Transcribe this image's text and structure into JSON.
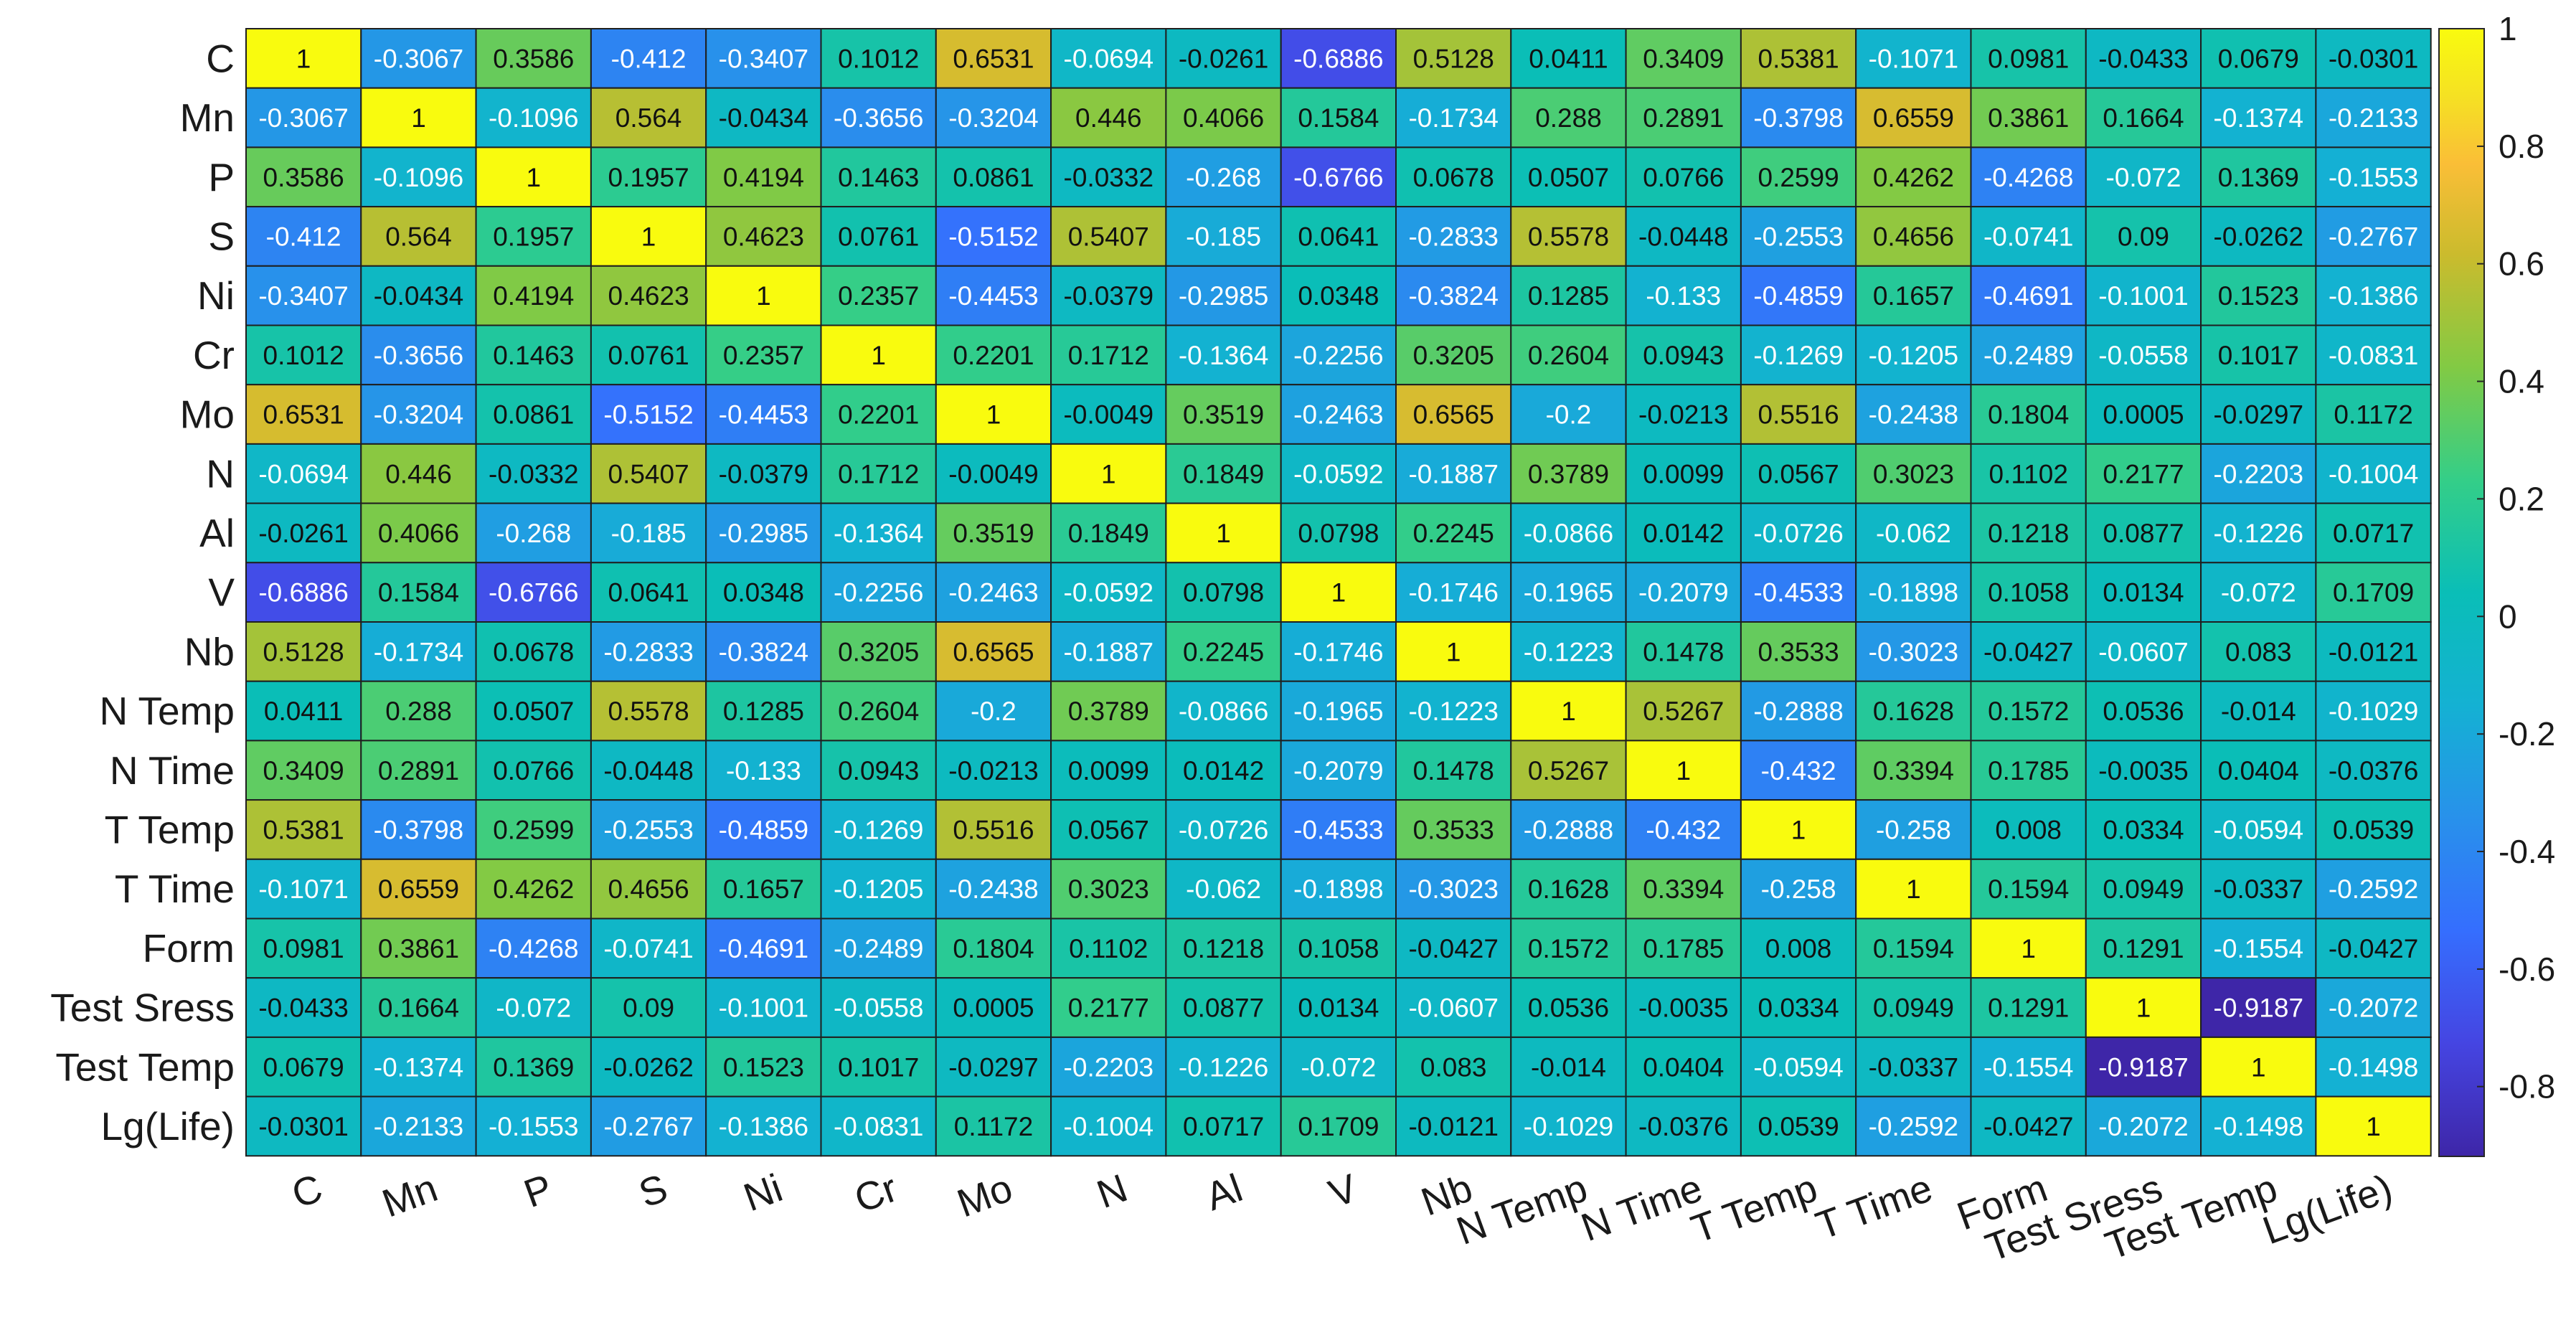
{
  "chart_data": {
    "type": "heatmap",
    "title": "",
    "xlabel": "",
    "ylabel": "",
    "colormap": "parula",
    "clim": [
      -0.9187,
      1
    ],
    "colorbar_ticks": [
      "1",
      "0.8",
      "0.6",
      "0.4",
      "0.2",
      "0",
      "-0.2",
      "-0.4",
      "-0.6",
      "-0.8"
    ],
    "row_labels": [
      "C",
      "Mn",
      "P",
      "S",
      "Ni",
      "Cr",
      "Mo",
      "N",
      "Al",
      "V",
      "Nb",
      "N Temp",
      "N Time",
      "T Temp",
      "T Time",
      "Form",
      "Test Sress",
      "Test Temp",
      "Lg(Life)"
    ],
    "col_labels": [
      "C",
      "Mn",
      "P",
      "S",
      "Ni",
      "Cr",
      "Mo",
      "N",
      "Al",
      "V",
      "Nb",
      "N Temp",
      "N Time",
      "T Temp",
      "T Time",
      "Form",
      "Test Sress",
      "Test Temp",
      "Lg(Life)"
    ],
    "values": [
      [
        "1",
        "-0.3067",
        "0.3586",
        "-0.412",
        "-0.3407",
        "0.1012",
        "0.6531",
        "-0.0694",
        "-0.0261",
        "-0.6886",
        "0.5128",
        "0.0411",
        "0.3409",
        "0.5381",
        "-0.1071",
        "0.0981",
        "-0.0433",
        "0.0679",
        "-0.0301"
      ],
      [
        "-0.3067",
        "1",
        "-0.1096",
        "0.564",
        "-0.0434",
        "-0.3656",
        "-0.3204",
        "0.446",
        "0.4066",
        "0.1584",
        "-0.1734",
        "0.288",
        "0.2891",
        "-0.3798",
        "0.6559",
        "0.3861",
        "0.1664",
        "-0.1374",
        "-0.2133"
      ],
      [
        "0.3586",
        "-0.1096",
        "1",
        "0.1957",
        "0.4194",
        "0.1463",
        "0.0861",
        "-0.0332",
        "-0.268",
        "-0.6766",
        "0.0678",
        "0.0507",
        "0.0766",
        "0.2599",
        "0.4262",
        "-0.4268",
        "-0.072",
        "0.1369",
        "-0.1553"
      ],
      [
        "-0.412",
        "0.564",
        "0.1957",
        "1",
        "0.4623",
        "0.0761",
        "-0.5152",
        "0.5407",
        "-0.185",
        "0.0641",
        "-0.2833",
        "0.5578",
        "-0.0448",
        "-0.2553",
        "0.4656",
        "-0.0741",
        "0.09",
        "-0.0262",
        "-0.2767"
      ],
      [
        "-0.3407",
        "-0.0434",
        "0.4194",
        "0.4623",
        "1",
        "0.2357",
        "-0.4453",
        "-0.0379",
        "-0.2985",
        "0.0348",
        "-0.3824",
        "0.1285",
        "-0.133",
        "-0.4859",
        "0.1657",
        "-0.4691",
        "-0.1001",
        "0.1523",
        "-0.1386"
      ],
      [
        "0.1012",
        "-0.3656",
        "0.1463",
        "0.0761",
        "0.2357",
        "1",
        "0.2201",
        "0.1712",
        "-0.1364",
        "-0.2256",
        "0.3205",
        "0.2604",
        "0.0943",
        "-0.1269",
        "-0.1205",
        "-0.2489",
        "-0.0558",
        "0.1017",
        "-0.0831"
      ],
      [
        "0.6531",
        "-0.3204",
        "0.0861",
        "-0.5152",
        "-0.4453",
        "0.2201",
        "1",
        "-0.0049",
        "0.3519",
        "-0.2463",
        "0.6565",
        "-0.2",
        "-0.0213",
        "0.5516",
        "-0.2438",
        "0.1804",
        "0.0005",
        "-0.0297",
        "0.1172"
      ],
      [
        "-0.0694",
        "0.446",
        "-0.0332",
        "0.5407",
        "-0.0379",
        "0.1712",
        "-0.0049",
        "1",
        "0.1849",
        "-0.0592",
        "-0.1887",
        "0.3789",
        "0.0099",
        "0.0567",
        "0.3023",
        "0.1102",
        "0.2177",
        "-0.2203",
        "-0.1004"
      ],
      [
        "-0.0261",
        "0.4066",
        "-0.268",
        "-0.185",
        "-0.2985",
        "-0.1364",
        "0.3519",
        "0.1849",
        "1",
        "0.0798",
        "0.2245",
        "-0.0866",
        "0.0142",
        "-0.0726",
        "-0.062",
        "0.1218",
        "0.0877",
        "-0.1226",
        "0.0717"
      ],
      [
        "-0.6886",
        "0.1584",
        "-0.6766",
        "0.0641",
        "0.0348",
        "-0.2256",
        "-0.2463",
        "-0.0592",
        "0.0798",
        "1",
        "-0.1746",
        "-0.1965",
        "-0.2079",
        "-0.4533",
        "-0.1898",
        "0.1058",
        "0.0134",
        "-0.072",
        "0.1709"
      ],
      [
        "0.5128",
        "-0.1734",
        "0.0678",
        "-0.2833",
        "-0.3824",
        "0.3205",
        "0.6565",
        "-0.1887",
        "0.2245",
        "-0.1746",
        "1",
        "-0.1223",
        "0.1478",
        "0.3533",
        "-0.3023",
        "-0.0427",
        "-0.0607",
        "0.083",
        "-0.0121"
      ],
      [
        "0.0411",
        "0.288",
        "0.0507",
        "0.5578",
        "0.1285",
        "0.2604",
        "-0.2",
        "0.3789",
        "-0.0866",
        "-0.1965",
        "-0.1223",
        "1",
        "0.5267",
        "-0.2888",
        "0.1628",
        "0.1572",
        "0.0536",
        "-0.014",
        "-0.1029"
      ],
      [
        "0.3409",
        "0.2891",
        "0.0766",
        "-0.0448",
        "-0.133",
        "0.0943",
        "-0.0213",
        "0.0099",
        "0.0142",
        "-0.2079",
        "0.1478",
        "0.5267",
        "1",
        "-0.432",
        "0.3394",
        "0.1785",
        "-0.0035",
        "0.0404",
        "-0.0376"
      ],
      [
        "0.5381",
        "-0.3798",
        "0.2599",
        "-0.2553",
        "-0.4859",
        "-0.1269",
        "0.5516",
        "0.0567",
        "-0.0726",
        "-0.4533",
        "0.3533",
        "-0.2888",
        "-0.432",
        "1",
        "-0.258",
        "0.008",
        "0.0334",
        "-0.0594",
        "0.0539"
      ],
      [
        "-0.1071",
        "0.6559",
        "0.4262",
        "0.4656",
        "0.1657",
        "-0.1205",
        "-0.2438",
        "0.3023",
        "-0.062",
        "-0.1898",
        "-0.3023",
        "0.1628",
        "0.3394",
        "-0.258",
        "1",
        "0.1594",
        "0.0949",
        "-0.0337",
        "-0.2592"
      ],
      [
        "0.0981",
        "0.3861",
        "-0.4268",
        "-0.0741",
        "-0.4691",
        "-0.2489",
        "0.1804",
        "0.1102",
        "0.1218",
        "0.1058",
        "-0.0427",
        "0.1572",
        "0.1785",
        "0.008",
        "0.1594",
        "1",
        "0.1291",
        "-0.1554",
        "-0.0427"
      ],
      [
        "-0.0433",
        "0.1664",
        "-0.072",
        "0.09",
        "-0.1001",
        "-0.0558",
        "0.0005",
        "0.2177",
        "0.0877",
        "0.0134",
        "-0.0607",
        "0.0536",
        "-0.0035",
        "0.0334",
        "0.0949",
        "0.1291",
        "1",
        "-0.9187",
        "-0.2072"
      ],
      [
        "0.0679",
        "-0.1374",
        "0.1369",
        "-0.0262",
        "0.1523",
        "0.1017",
        "-0.0297",
        "-0.2203",
        "-0.1226",
        "-0.072",
        "0.083",
        "-0.014",
        "0.0404",
        "-0.0594",
        "-0.0337",
        "-0.1554",
        "-0.9187",
        "1",
        "-0.1498"
      ],
      [
        "-0.0301",
        "-0.2133",
        "-0.1553",
        "-0.2767",
        "-0.1386",
        "-0.0831",
        "0.1172",
        "-0.1004",
        "0.0717",
        "0.1709",
        "-0.0121",
        "-0.1029",
        "-0.0376",
        "0.0539",
        "-0.2592",
        "-0.0427",
        "-0.2072",
        "-0.1498",
        "1"
      ]
    ]
  }
}
